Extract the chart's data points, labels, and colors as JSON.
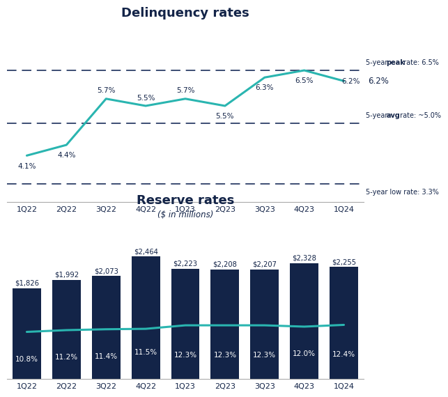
{
  "quarters": [
    "1Q22",
    "2Q22",
    "3Q22",
    "4Q22",
    "1Q23",
    "2Q23",
    "3Q23",
    "4Q23",
    "1Q24"
  ],
  "delinquency_values": [
    4.1,
    4.4,
    5.7,
    5.5,
    5.7,
    5.5,
    6.3,
    6.5,
    6.2
  ],
  "delinquency_labels": [
    "4.1%",
    "4.4%",
    "5.7%",
    "5.5%",
    "5.7%",
    "5.5%",
    "6.3%",
    "6.5%",
    "6.2%"
  ],
  "delinquency_label_offsets_y": [
    -0.3,
    -0.28,
    0.23,
    0.23,
    0.23,
    -0.28,
    -0.28,
    -0.28,
    0.0
  ],
  "delinquency_label_offsets_x": [
    0,
    0,
    0,
    0,
    0,
    0,
    0,
    0,
    0.18
  ],
  "peak_rate": 6.5,
  "avg_rate": 5.0,
  "low_rate": 3.3,
  "peak_label_plain": "5-year ",
  "peak_label_bold": "peak",
  "peak_label_rest": " rate: 6.5%",
  "avg_label_plain": "5-year ",
  "avg_label_bold": "avg",
  "avg_label_rest": " rate: ~5.0%",
  "low_label": "5-year low rate: 3.3%",
  "reserve_values": [
    1826,
    1992,
    2073,
    2464,
    2223,
    2208,
    2207,
    2328,
    2255
  ],
  "reserve_labels": [
    "$1,826",
    "$1,992",
    "$2,073",
    "$2,464",
    "$2,223",
    "$2,208",
    "$2,207",
    "$2,328",
    "$2,255"
  ],
  "reserve_rate_values": [
    10.8,
    11.2,
    11.4,
    11.5,
    12.3,
    12.3,
    12.3,
    12.0,
    12.4
  ],
  "reserve_rate_labels": [
    "10.8%",
    "11.2%",
    "11.4%",
    "11.5%",
    "12.3%",
    "12.3%",
    "12.3%",
    "12.0%",
    "12.4%"
  ],
  "delinquency_title": "Delinquency rates",
  "reserve_title": "Reserve rates",
  "reserve_subtitle": "($ in millions)",
  "line_color": "#2ab5b0",
  "bar_color": "#132448",
  "dashed_color": "#1a2e5a",
  "title_color": "#132448",
  "label_color_dark": "#132448",
  "label_color_light": "#ffffff",
  "background_color": "#ffffff",
  "ylim_delinquency": [
    2.8,
    7.8
  ],
  "ylim_reserve": [
    0,
    3100
  ]
}
